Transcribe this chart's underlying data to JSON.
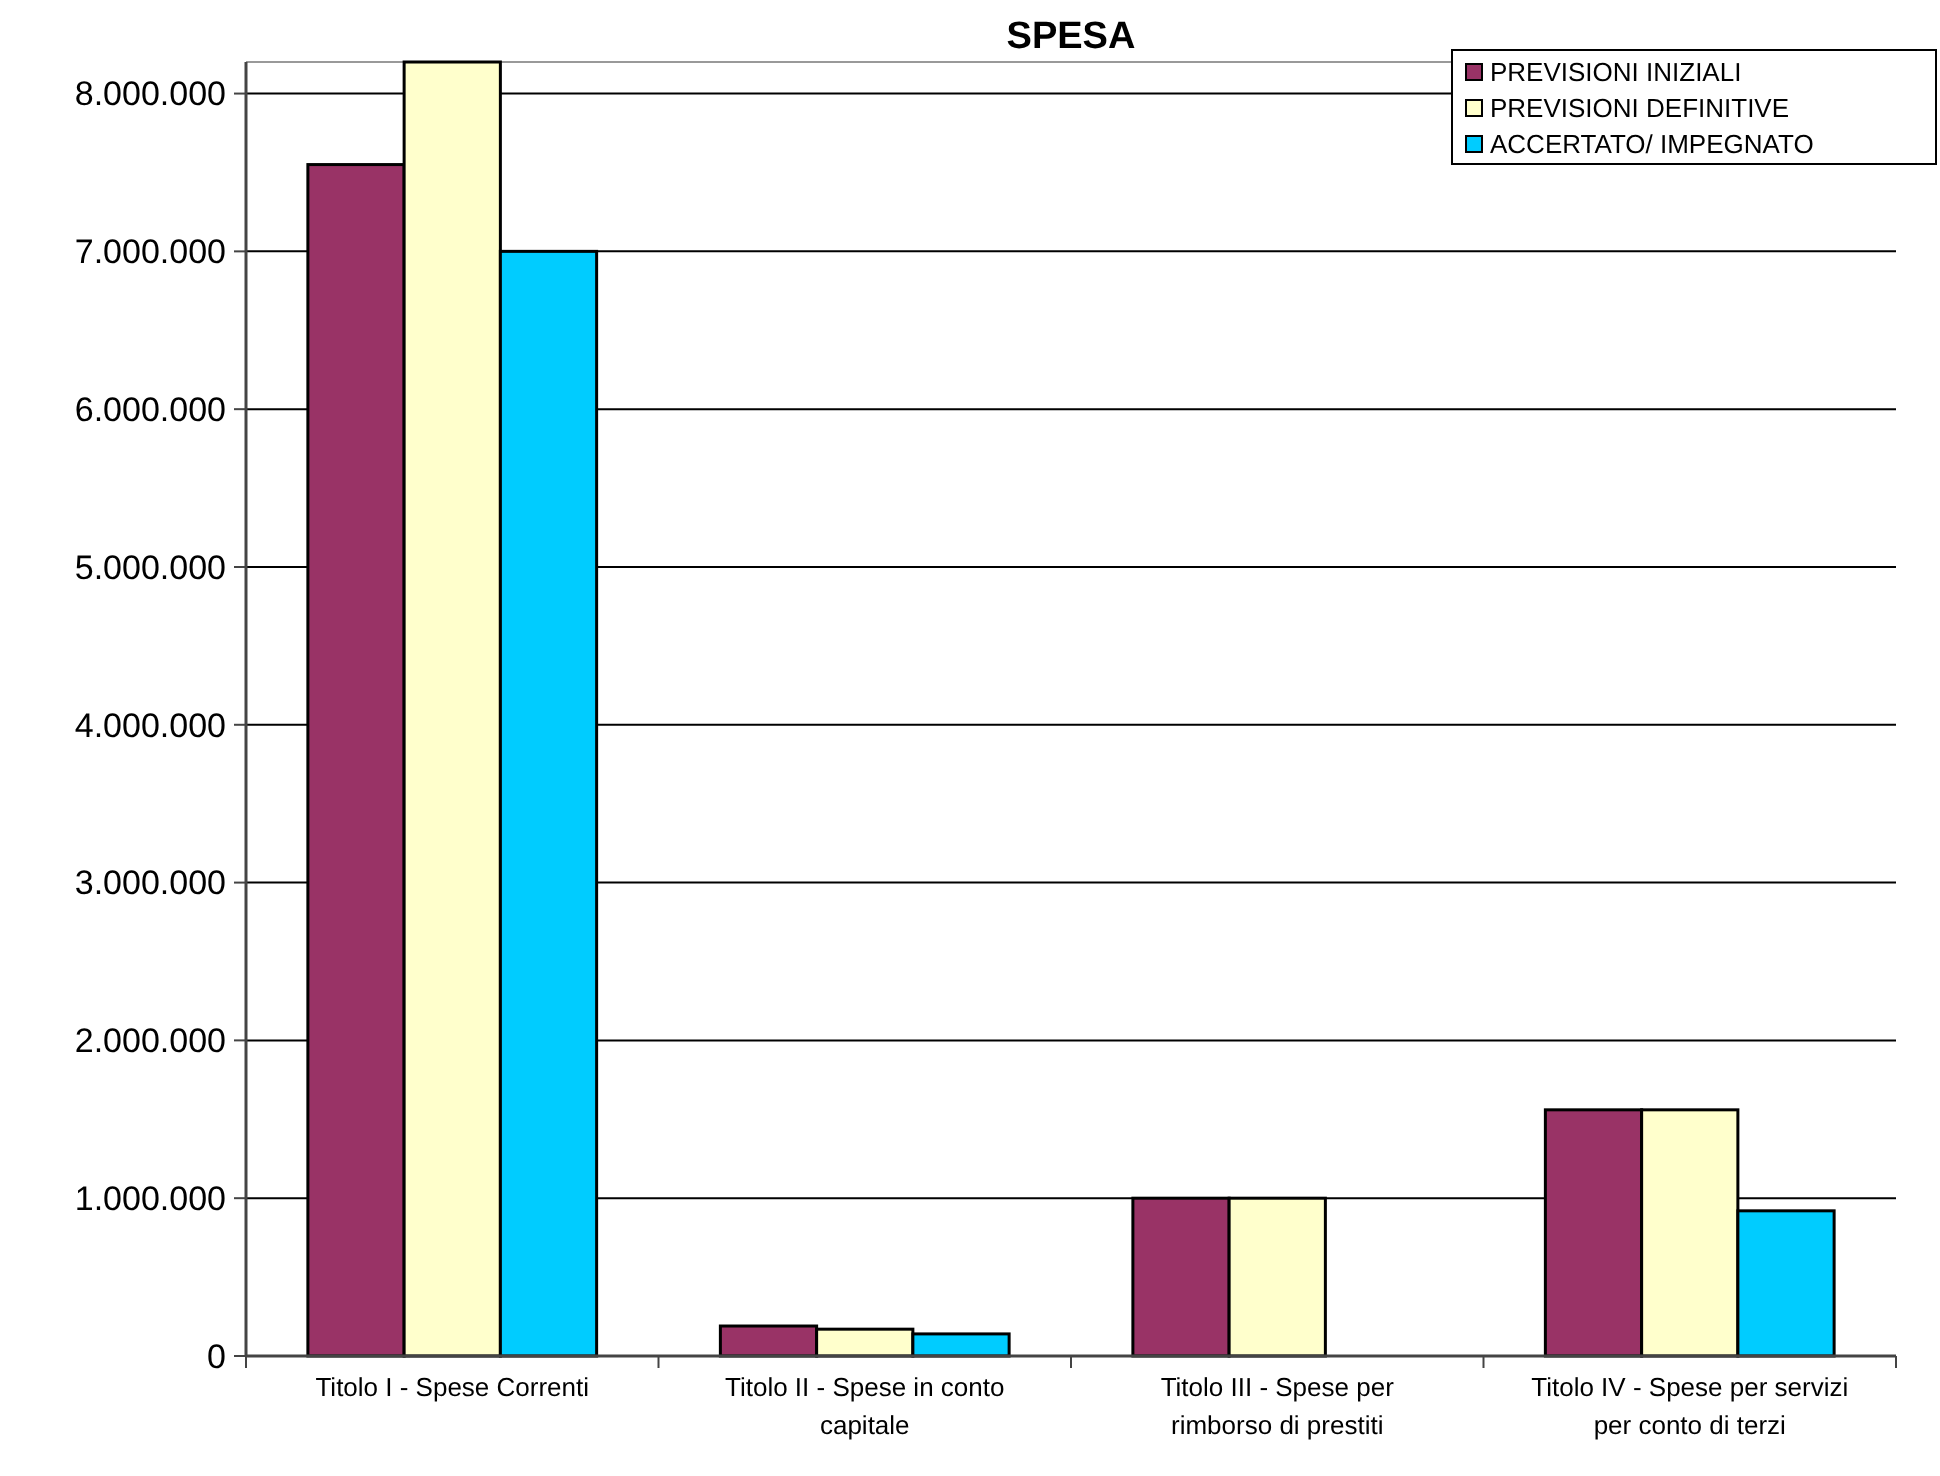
{
  "chart_data": {
    "type": "bar",
    "title": "SPESA",
    "categories": [
      "Titolo I - Spese Correnti",
      "Titolo II - Spese in conto capitale",
      "Titolo III - Spese per rimborso di prestiti",
      "Titolo IV - Spese per servizi per conto di terzi"
    ],
    "series": [
      {
        "name": "PREVISIONI INIZIALI",
        "color": "#993366",
        "values": [
          7550000,
          190000,
          1000000,
          1560000
        ]
      },
      {
        "name": "PREVISIONI DEFINITIVE",
        "color": "#ffffcc",
        "values": [
          8200000,
          170000,
          1000000,
          1560000
        ]
      },
      {
        "name": "ACCERTATO/ IMPEGNATO",
        "color": "#00ccff",
        "values": [
          7000000,
          140000,
          null,
          920000
        ]
      }
    ],
    "ylim": [
      0,
      8200000
    ],
    "yticks": [
      {
        "value": 0,
        "label": "0"
      },
      {
        "value": 1000000,
        "label": "1.000.000"
      },
      {
        "value": 2000000,
        "label": "2.000.000"
      },
      {
        "value": 3000000,
        "label": "3.000.000"
      },
      {
        "value": 4000000,
        "label": "4.000.000"
      },
      {
        "value": 5000000,
        "label": "5.000.000"
      },
      {
        "value": 6000000,
        "label": "6.000.000"
      },
      {
        "value": 7000000,
        "label": "7.000.000"
      },
      {
        "value": 8000000,
        "label": "8.000.000"
      }
    ],
    "grid": "y",
    "legend": "top right"
  }
}
